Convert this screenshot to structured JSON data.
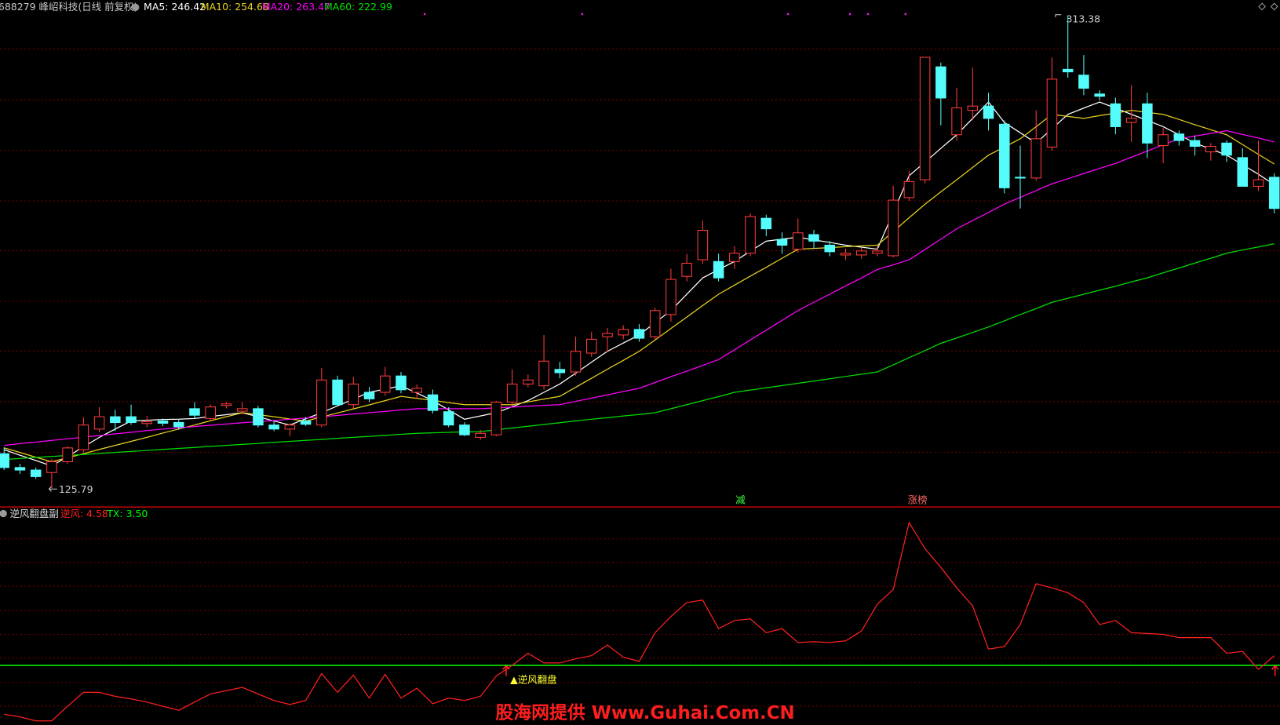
{
  "chart_data": [
    {
      "type": "candlestick",
      "title": "688279 峰岹科技(日线 前复权)",
      "up_color": "#ff3c3c",
      "down_color": "#54fcfc",
      "ylim": [
        118.63,
        319.87
      ],
      "open": [
        139.5,
        134.0,
        133.0,
        132.0,
        136.3,
        141.1,
        149.3,
        154.2,
        154.2,
        151.5,
        152.5,
        151.9,
        157.4,
        153.5,
        158.7,
        156.4,
        157.4,
        150.9,
        149.3,
        152.5,
        150.9,
        168.8,
        159.0,
        163.9,
        163.9,
        170.4,
        163.9,
        162.9,
        156.2,
        150.9,
        146.0,
        147.0,
        160.0,
        167.2,
        166.5,
        173.0,
        172.0,
        179.5,
        186.0,
        186.7,
        188.9,
        186.0,
        194.8,
        210.0,
        216.6,
        215.9,
        215.9,
        219.2,
        233.1,
        224.7,
        220.8,
        226.6,
        222.4,
        218.5,
        218.5,
        219.2,
        218.2,
        241.3,
        248.4,
        293.3,
        266.3,
        276.0,
        277.7,
        270.5,
        249.4,
        249.1,
        261.4,
        292.3,
        290.0,
        282.5,
        278.6,
        271.2,
        278.6,
        262.0,
        266.6,
        264.0,
        259.5,
        263.0,
        257.2,
        245.8,
        249.4
      ],
      "high": [
        142,
        135.5,
        134,
        137.5,
        142.5,
        154,
        158,
        157,
        159.0,
        154.5,
        153.5,
        153,
        160,
        159,
        160,
        160,
        158.5,
        152.5,
        151.5,
        154,
        173.6,
        170.5,
        170,
        166,
        174,
        172,
        167,
        165,
        158,
        152,
        149,
        160.5,
        173,
        171,
        186.7,
        176,
        186,
        188,
        189.5,
        190.5,
        191,
        197.5,
        213,
        219,
        232.2,
        219,
        222,
        235,
        234.5,
        227.5,
        233,
        228.5,
        224,
        221,
        221.5,
        222,
        246,
        252,
        297.1,
        295,
        285,
        293,
        283,
        272,
        262,
        276,
        297,
        313.38,
        298,
        284,
        281,
        286,
        283,
        269,
        268,
        266,
        263,
        264,
        261,
        264,
        251
      ],
      "low": [
        133,
        131.5,
        129.5,
        125.79,
        135.5,
        140,
        148,
        148.5,
        151,
        150,
        150.5,
        149,
        153.5,
        152.5,
        157.5,
        155,
        150,
        148.5,
        146.5,
        150.5,
        150,
        158.5,
        157.5,
        160,
        162.5,
        163.5,
        161.5,
        155.5,
        150,
        146.5,
        145,
        146.5,
        158.5,
        166,
        165,
        169.5,
        170.5,
        178,
        180,
        185,
        184,
        185,
        192,
        208,
        215,
        208,
        213,
        218,
        226,
        219,
        219.5,
        221,
        218,
        216.5,
        217,
        218,
        217.5,
        240,
        247,
        270,
        264,
        272,
        268,
        243,
        237,
        248,
        260,
        289,
        282,
        280,
        266.5,
        263.5,
        257,
        255,
        262,
        258,
        256,
        255.5,
        247,
        244,
        235
      ],
      "close": [
        134.0,
        133.0,
        130.4,
        136.3,
        141.8,
        150.9,
        154.2,
        151.9,
        151.9,
        152.2,
        151.6,
        150.2,
        154.8,
        158.1,
        159.3,
        157.4,
        150.9,
        149.3,
        150.9,
        151.2,
        168.8,
        159.0,
        167.2,
        161.3,
        170.4,
        164.9,
        165.5,
        156.7,
        150.9,
        147.0,
        147.6,
        160.0,
        167.2,
        168.8,
        176.3,
        171.7,
        180.2,
        185.0,
        187.3,
        188.9,
        185.4,
        196.4,
        208.8,
        215.2,
        228.3,
        209.4,
        219.2,
        233.8,
        228.9,
        222.4,
        227.3,
        224.0,
        219.8,
        219.2,
        220.1,
        220.1,
        240.3,
        247.7,
        297.1,
        280.9,
        277.0,
        277.7,
        272.8,
        245.2,
        249.1,
        264.7,
        288.4,
        291.3,
        284.8,
        281.6,
        269.5,
        272.8,
        263.0,
        266.3,
        264.0,
        261.7,
        261.7,
        258.2,
        245.8,
        248.4,
        237.0
      ],
      "series": [
        {
          "legend": "MA5: 246.42",
          "color": "#ffffff",
          "values": [
            141.1,
            138.9,
            136.8,
            134.6,
            138.4,
            142.2,
            146.0,
            149.3,
            152.5,
            152.8,
            153.1,
            153.2,
            153.5,
            154.3,
            155.0,
            155.8,
            154.2,
            152.5,
            150.9,
            153.4,
            155.8,
            158.5,
            161.2,
            163.9,
            165.2,
            166.5,
            163.6,
            160.6,
            156.9,
            153.2,
            154.5,
            155.8,
            158.2,
            160.6,
            163.9,
            167.2,
            171.5,
            175.9,
            180.2,
            183.5,
            186.7,
            191.6,
            196.4,
            202.9,
            209.4,
            212.7,
            215.9,
            220.0,
            224.0,
            224.8,
            225.6,
            224.5,
            223.5,
            222.4,
            221.6,
            220.8,
            235.4,
            250.0,
            255.4,
            260.9,
            266.3,
            272.8,
            279.3,
            271.2,
            267.1,
            263.0,
            268.7,
            274.4,
            276.9,
            279.3,
            276.9,
            274.4,
            272.0,
            269.5,
            266.3,
            263.0,
            260.6,
            258.2,
            254.4,
            250.6,
            246.42
          ]
        },
        {
          "legend": "MA10: 254.68",
          "color": "#e8d21e",
          "values": [
            141.8,
            140.0,
            138.1,
            136.3,
            137.9,
            139.5,
            141.2,
            142.8,
            144.4,
            146.0,
            147.7,
            149.3,
            150.9,
            152.6,
            154.2,
            155.8,
            155.0,
            154.2,
            153.3,
            152.5,
            154.1,
            155.7,
            157.3,
            158.9,
            160.6,
            162.3,
            161.5,
            160.7,
            159.8,
            159.0,
            159.0,
            159.0,
            159.0,
            160.1,
            161.2,
            162.3,
            165.9,
            169.5,
            173.1,
            176.6,
            180.2,
            184.7,
            189.3,
            193.8,
            198.4,
            202.9,
            206.5,
            210.1,
            213.6,
            217.2,
            220.8,
            221.1,
            221.4,
            221.8,
            222.1,
            222.4,
            227.8,
            233.3,
            238.7,
            243.6,
            248.4,
            253.3,
            258.2,
            261.4,
            264.7,
            269.5,
            274.4,
            273.6,
            272.8,
            273.9,
            274.9,
            276.0,
            275.2,
            274.4,
            272.4,
            270.3,
            268.3,
            266.3,
            262.4,
            258.5,
            254.68
          ]
        },
        {
          "legend": "MA20: 263.47",
          "color": "#ff00ff",
          "values": [
            142.8,
            143.5,
            144.1,
            144.8,
            145.4,
            146.1,
            146.7,
            147.4,
            148.0,
            148.7,
            149.3,
            149.8,
            150.3,
            150.8,
            151.3,
            151.8,
            152.2,
            152.7,
            153.2,
            153.7,
            154.2,
            154.7,
            155.3,
            155.8,
            156.3,
            156.9,
            157.4,
            157.4,
            157.4,
            157.4,
            157.4,
            157.7,
            158.0,
            158.4,
            158.7,
            159.0,
            160.3,
            161.6,
            162.9,
            164.2,
            165.5,
            167.8,
            170.1,
            172.3,
            174.6,
            176.9,
            180.8,
            184.7,
            188.6,
            192.5,
            196.4,
            199.7,
            202.9,
            206.2,
            209.4,
            212.7,
            214.6,
            216.6,
            220.7,
            224.8,
            228.9,
            232.2,
            235.4,
            238.7,
            241.4,
            244.1,
            246.8,
            248.8,
            250.9,
            252.9,
            254.9,
            257.4,
            259.8,
            262.3,
            264.7,
            265.8,
            266.8,
            267.9,
            266.4,
            265.0,
            263.47
          ]
        },
        {
          "legend": "MA60: 222.99",
          "color": "#00e000",
          "values": [
            137.2,
            137.6,
            138.0,
            138.4,
            138.8,
            139.2,
            139.6,
            140.0,
            140.4,
            140.8,
            141.2,
            141.6,
            142.0,
            142.4,
            142.8,
            143.2,
            143.6,
            144.0,
            144.4,
            144.8,
            145.2,
            145.6,
            146.0,
            146.4,
            146.8,
            147.2,
            147.6,
            147.8,
            148.0,
            148.2,
            148.3,
            149.0,
            149.7,
            150.4,
            151.1,
            151.8,
            152.5,
            153.2,
            153.8,
            154.5,
            155.1,
            155.8,
            157.4,
            159.0,
            160.6,
            162.2,
            163.9,
            164.8,
            165.7,
            166.6,
            167.5,
            168.4,
            169.3,
            170.2,
            171.1,
            172.0,
            174.8,
            177.7,
            180.5,
            183.4,
            185.5,
            187.7,
            189.9,
            192.3,
            194.8,
            197.2,
            199.7,
            201.3,
            202.9,
            204.5,
            206.1,
            207.8,
            209.4,
            211.4,
            213.3,
            215.3,
            217.2,
            219.2,
            220.5,
            221.7,
            222.99
          ]
        }
      ],
      "high_label": "313.38",
      "low_label": "125.79",
      "annotations": [
        {
          "text": "减",
          "color": "#3cff3c"
        },
        {
          "text": "涨榜",
          "color": "#ff6a6a"
        }
      ]
    },
    {
      "type": "line",
      "title": "逆风翻盘副",
      "ylim": [
        -3.14,
        21.05
      ],
      "series": [
        {
          "legend": "逆风: 4.58",
          "color": "#ff2020",
          "values": [
            -1.95,
            -2.23,
            -2.68,
            -2.68,
            -1.05,
            0.5,
            0.5,
            0.05,
            -0.23,
            -0.59,
            -1.05,
            -1.5,
            -0.59,
            0.32,
            0.68,
            1.05,
            0.32,
            -0.41,
            -0.86,
            -0.41,
            2.59,
            0.5,
            2.41,
            -0.14,
            2.5,
            -0.14,
            0.95,
            -0.77,
            -0.14,
            -0.41,
            0.05,
            2.32,
            3.5,
            4.86,
            3.77,
            3.77,
            4.23,
            4.59,
            5.77,
            4.41,
            3.95,
            7.14,
            8.95,
            10.5,
            10.77,
            7.59,
            8.5,
            8.68,
            7.14,
            7.59,
            6.05,
            6.14,
            6.05,
            6.23,
            7.32,
            10.32,
            11.95,
            19.41,
            16.5,
            14.41,
            12.14,
            10.14,
            5.32,
            5.59,
            8.05,
            12.59,
            12.14,
            11.59,
            10.5,
            8.05,
            8.5,
            7.14,
            7.05,
            6.95,
            6.59,
            6.59,
            6.59,
            4.86,
            5.05,
            3.05,
            4.58
          ]
        }
      ],
      "reference": {
        "legend": "TX: 3.50",
        "value": 3.5,
        "color": "#00ff00"
      },
      "signal_label": "▲逆风翻盘"
    }
  ],
  "watermark": "股海网提供 Www.Guhai.Com.CN"
}
